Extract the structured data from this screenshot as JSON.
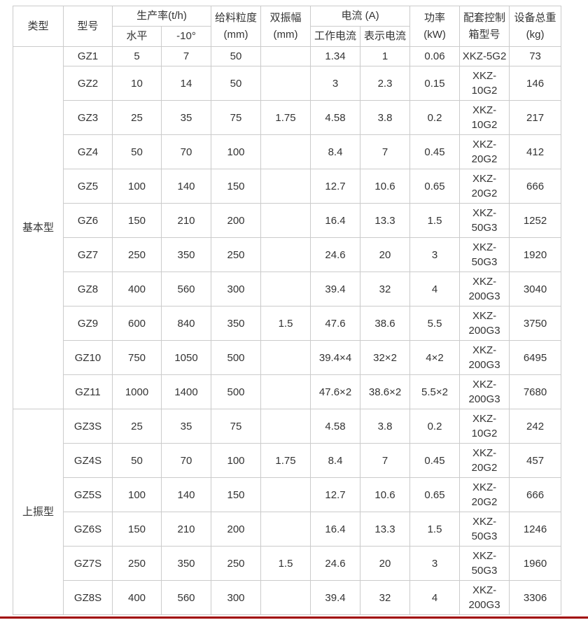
{
  "colors": {
    "accent_line": "#a00000",
    "table_border": "#cbcbcb",
    "text": "#333333"
  },
  "table": {
    "headers": {
      "type": "类型",
      "model": "型号",
      "production": "生产率(t/h)",
      "horizontal": "水平",
      "incline": "-10°",
      "feed_size": "给料粒度\n(mm)",
      "amplitude": "双振幅\n(mm)",
      "current": "电流 (A)",
      "working_current": "工作电流",
      "indicated_current": "表示电流",
      "power": "功率\n(kW)",
      "control_box": "配套控制\n箱型号",
      "weight": "设备总重\n(kg)"
    },
    "groups": [
      {
        "label": "基本型",
        "rows": [
          {
            "model": "GZ1",
            "horizontal": "5",
            "incline": "7",
            "feed_size": "50",
            "amplitude": "",
            "working_current": "1.34",
            "indicated_current": "1",
            "power": "0.06",
            "control_box": "XKZ-5G2",
            "weight": "73"
          },
          {
            "model": "GZ2",
            "horizontal": "10",
            "incline": "14",
            "feed_size": "50",
            "amplitude": "",
            "working_current": "3",
            "indicated_current": "2.3",
            "power": "0.15",
            "control_box": "XKZ-\n10G2",
            "weight": "146"
          },
          {
            "model": "GZ3",
            "horizontal": "25",
            "incline": "35",
            "feed_size": "75",
            "amplitude": "1.75",
            "working_current": "4.58",
            "indicated_current": "3.8",
            "power": "0.2",
            "control_box": "XKZ-\n10G2",
            "weight": "217"
          },
          {
            "model": "GZ4",
            "horizontal": "50",
            "incline": "70",
            "feed_size": "100",
            "amplitude": "",
            "working_current": "8.4",
            "indicated_current": "7",
            "power": "0.45",
            "control_box": "XKZ-\n20G2",
            "weight": "412"
          },
          {
            "model": "GZ5",
            "horizontal": "100",
            "incline": "140",
            "feed_size": "150",
            "amplitude": "",
            "working_current": "12.7",
            "indicated_current": "10.6",
            "power": "0.65",
            "control_box": "XKZ-\n20G2",
            "weight": "666"
          },
          {
            "model": "GZ6",
            "horizontal": "150",
            "incline": "210",
            "feed_size": "200",
            "amplitude": "",
            "working_current": "16.4",
            "indicated_current": "13.3",
            "power": "1.5",
            "control_box": "XKZ-\n50G3",
            "weight": "1252"
          },
          {
            "model": "GZ7",
            "horizontal": "250",
            "incline": "350",
            "feed_size": "250",
            "amplitude": "",
            "working_current": "24.6",
            "indicated_current": "20",
            "power": "3",
            "control_box": "XKZ-\n50G3",
            "weight": "1920"
          },
          {
            "model": "GZ8",
            "horizontal": "400",
            "incline": "560",
            "feed_size": "300",
            "amplitude": "",
            "working_current": "39.4",
            "indicated_current": "32",
            "power": "4",
            "control_box": "XKZ-\n200G3",
            "weight": "3040"
          },
          {
            "model": "GZ9",
            "horizontal": "600",
            "incline": "840",
            "feed_size": "350",
            "amplitude": "1.5",
            "working_current": "47.6",
            "indicated_current": "38.6",
            "power": "5.5",
            "control_box": "XKZ-\n200G3",
            "weight": "3750"
          },
          {
            "model": "GZ10",
            "horizontal": "750",
            "incline": "1050",
            "feed_size": "500",
            "amplitude": "",
            "working_current": "39.4×4",
            "indicated_current": "32×2",
            "power": "4×2",
            "control_box": "XKZ-\n200G3",
            "weight": "6495"
          },
          {
            "model": "GZ11",
            "horizontal": "1000",
            "incline": "1400",
            "feed_size": "500",
            "amplitude": "",
            "working_current": "47.6×2",
            "indicated_current": "38.6×2",
            "power": "5.5×2",
            "control_box": "XKZ-\n200G3",
            "weight": "7680"
          }
        ]
      },
      {
        "label": "上振型",
        "rows": [
          {
            "model": "GZ3S",
            "horizontal": "25",
            "incline": "35",
            "feed_size": "75",
            "amplitude": "",
            "working_current": "4.58",
            "indicated_current": "3.8",
            "power": "0.2",
            "control_box": "XKZ-\n10G2",
            "weight": "242"
          },
          {
            "model": "GZ4S",
            "horizontal": "50",
            "incline": "70",
            "feed_size": "100",
            "amplitude": "1.75",
            "working_current": "8.4",
            "indicated_current": "7",
            "power": "0.45",
            "control_box": "XKZ-\n20G2",
            "weight": "457"
          },
          {
            "model": "GZ5S",
            "horizontal": "100",
            "incline": "140",
            "feed_size": "150",
            "amplitude": "",
            "working_current": "12.7",
            "indicated_current": "10.6",
            "power": "0.65",
            "control_box": "XKZ-\n20G2",
            "weight": "666"
          },
          {
            "model": "GZ6S",
            "horizontal": "150",
            "incline": "210",
            "feed_size": "200",
            "amplitude": "",
            "working_current": "16.4",
            "indicated_current": "13.3",
            "power": "1.5",
            "control_box": "XKZ-\n50G3",
            "weight": "1246"
          },
          {
            "model": "GZ7S",
            "horizontal": "250",
            "incline": "350",
            "feed_size": "250",
            "amplitude": "1.5",
            "working_current": "24.6",
            "indicated_current": "20",
            "power": "3",
            "control_box": "XKZ-\n50G3",
            "weight": "1960"
          },
          {
            "model": "GZ8S",
            "horizontal": "400",
            "incline": "560",
            "feed_size": "300",
            "amplitude": "",
            "working_current": "39.4",
            "indicated_current": "32",
            "power": "4",
            "control_box": "XKZ-\n200G3",
            "weight": "3306"
          }
        ]
      }
    ]
  }
}
